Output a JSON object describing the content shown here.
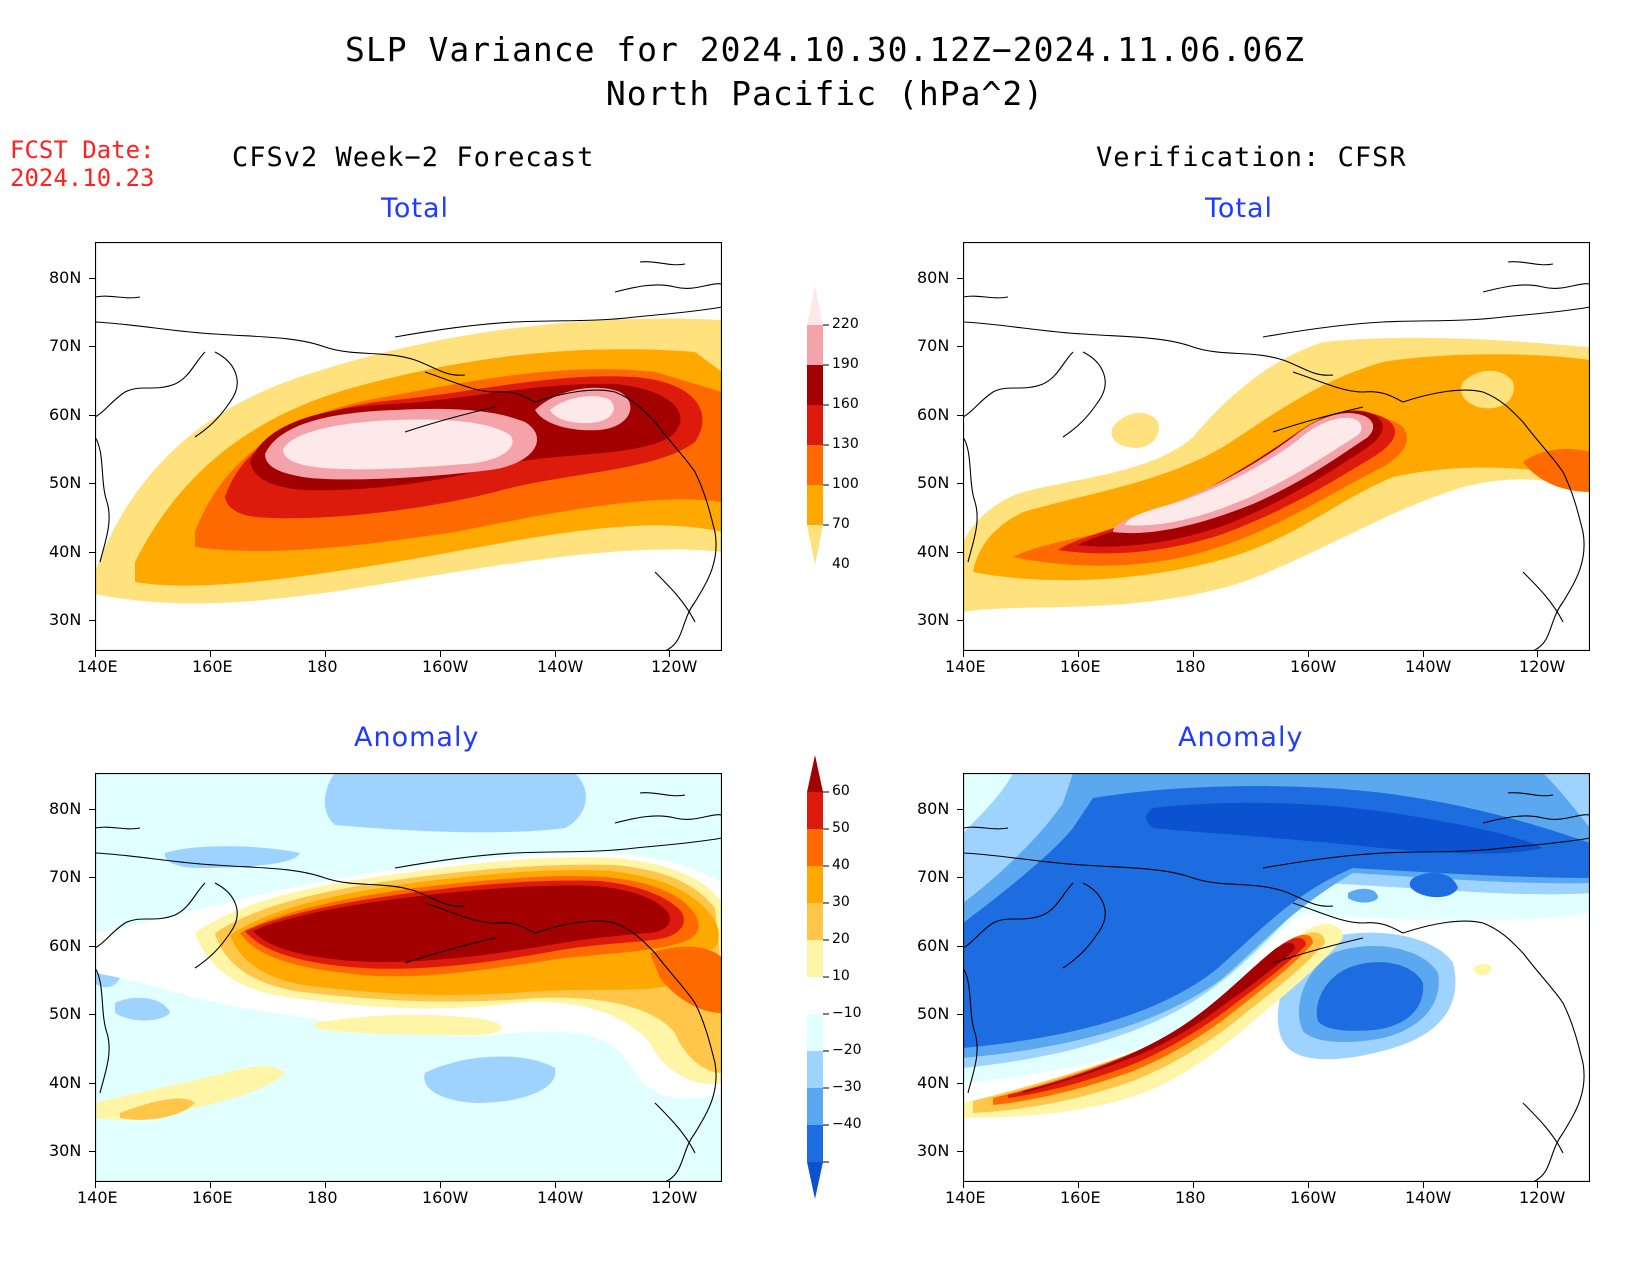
{
  "header": {
    "title_line1": "SLP Variance for 2024.10.30.12Z−2024.11.06.06Z",
    "title_line2": "North Pacific (hPa^2)",
    "fcst_line1": "FCST Date:",
    "fcst_line2": "2024.10.23",
    "left_column": "CFSv2 Week−2 Forecast",
    "right_column": "Verification: CFSR"
  },
  "panels": {
    "total_forecast": {
      "subtitle": "Total"
    },
    "total_verif": {
      "subtitle": "Total"
    },
    "anom_forecast": {
      "subtitle": "Anomaly"
    },
    "anom_verif": {
      "subtitle": "Anomaly"
    }
  },
  "axes": {
    "lat_ticks": [
      "80N",
      "70N",
      "60N",
      "50N",
      "40N",
      "30N"
    ],
    "lon_ticks": [
      "140E",
      "160E",
      "180",
      "160W",
      "140W",
      "120W"
    ]
  },
  "colorbars": {
    "total": {
      "labels": [
        "220",
        "190",
        "160",
        "130",
        "100",
        "70",
        "40"
      ],
      "colors": [
        "#fde9e9",
        "#f3a3a9",
        "#a30000",
        "#dd1b0c",
        "#ff6a00",
        "#ffa800",
        "#ffe27d"
      ]
    },
    "anomaly": {
      "labels": [
        "60",
        "50",
        "40",
        "30",
        "20",
        "10",
        "−10",
        "−20",
        "−30",
        "−40"
      ],
      "colors": [
        "#a30000",
        "#dd1b0c",
        "#ff6a00",
        "#ffa800",
        "#ffc64a",
        "#fff5a6",
        "#ffffff",
        "#e1ffff",
        "#9fd3ff",
        "#5ba8f0",
        "#1e6de0",
        "#0b52d0"
      ]
    }
  },
  "colors": {
    "title": "#000000",
    "fcst_date": "#ff2020",
    "subtitle": "#1f3bff"
  }
}
